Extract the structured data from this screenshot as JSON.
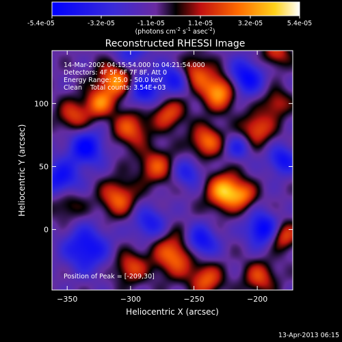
{
  "colorbar": {
    "ticks": [
      "-5.4e-05",
      "-3.2e-05",
      "-1.1e-05",
      "1.1e-05",
      "3.2e-05",
      "5.4e-05"
    ],
    "range": [
      -5.4e-05,
      5.4e-05
    ],
    "units_prefix": "(photons cm",
    "units_exp1": "-2",
    "units_mid": " s",
    "units_exp2": "-1",
    "units_mid2": " asec",
    "units_exp3": "-2",
    "units_suffix": ")"
  },
  "plot": {
    "title": "Reconstructed RHESSI Image",
    "annotations": [
      "14-Mar-2002 04:15:54.000 to 04:21:54.000",
      "Detectors: 4F 5F 6F 7F 8F, Att 0",
      "Energy Range: 25.0 - 50.0 keV",
      "Clean    Total counts: 3.54E+03"
    ],
    "peak_label": "Position of Peak = [-209,30]"
  },
  "chart_data": {
    "type": "heatmap",
    "title": "Reconstructed RHESSI Image",
    "xlabel": "Heliocentric X (arcsec)",
    "ylabel": "Heliocentric Y (arcsec)",
    "xlim": [
      -362,
      -172
    ],
    "ylim": [
      -48,
      142
    ],
    "xticks": [
      -350,
      -300,
      -250,
      -200
    ],
    "yticks": [
      0,
      50,
      100
    ],
    "value_range": [
      -5.4e-05,
      5.4e-05
    ],
    "colormap": "rhessi-blue-purple-red-yellow-white",
    "peak": [
      -209,
      30
    ],
    "blobs": [
      {
        "x": -225,
        "y": 30,
        "sigma": 10,
        "amp": 5.4e-05
      },
      {
        "x": -210,
        "y": 27,
        "sigma": 7,
        "amp": 2.5e-05
      },
      {
        "x": -230,
        "y": 110,
        "sigma": 10,
        "amp": 5e-05
      },
      {
        "x": -250,
        "y": 125,
        "sigma": 9,
        "amp": 3.5e-05
      },
      {
        "x": -240,
        "y": 70,
        "sigma": 9,
        "amp": 3.8e-05
      },
      {
        "x": -270,
        "y": 92,
        "sigma": 9,
        "amp": 3.2e-05
      },
      {
        "x": -312,
        "y": 118,
        "sigma": 10,
        "amp": 4.5e-05
      },
      {
        "x": -325,
        "y": 100,
        "sigma": 8,
        "amp": 3.6e-05
      },
      {
        "x": -300,
        "y": 80,
        "sigma": 10,
        "amp": 3.4e-05
      },
      {
        "x": -345,
        "y": 90,
        "sigma": 9,
        "amp": 3e-05
      },
      {
        "x": -280,
        "y": 50,
        "sigma": 10,
        "amp": 3.2e-05
      },
      {
        "x": -310,
        "y": 25,
        "sigma": 10,
        "amp": 3.6e-05
      },
      {
        "x": -265,
        "y": -20,
        "sigma": 12,
        "amp": 4e-05
      },
      {
        "x": -300,
        "y": -30,
        "sigma": 9,
        "amp": 3e-05
      },
      {
        "x": -200,
        "y": 80,
        "sigma": 9,
        "amp": 3.4e-05
      },
      {
        "x": -185,
        "y": 100,
        "sigma": 8,
        "amp": 2.6e-05
      },
      {
        "x": -180,
        "y": -5,
        "sigma": 8,
        "amp": 3.6e-05
      },
      {
        "x": -198,
        "y": -38,
        "sigma": 9,
        "amp": 3e-05
      },
      {
        "x": -240,
        "y": -40,
        "sigma": 9,
        "amp": 3.4e-05
      },
      {
        "x": -350,
        "y": 20,
        "sigma": 9,
        "amp": 2e-05
      },
      {
        "x": -335,
        "y": 65,
        "sigma": 10,
        "amp": -4e-05
      },
      {
        "x": -355,
        "y": 40,
        "sigma": 10,
        "amp": -3.6e-05
      },
      {
        "x": -335,
        "y": -15,
        "sigma": 12,
        "amp": -3.8e-05
      },
      {
        "x": -290,
        "y": 110,
        "sigma": 9,
        "amp": -3.6e-05
      },
      {
        "x": -265,
        "y": 120,
        "sigma": 9,
        "amp": -3.4e-05
      },
      {
        "x": -210,
        "y": 120,
        "sigma": 10,
        "amp": -4.2e-05
      },
      {
        "x": -180,
        "y": 55,
        "sigma": 8,
        "amp": -3.4e-05
      },
      {
        "x": -195,
        "y": 0,
        "sigma": 9,
        "amp": -4.6e-05
      },
      {
        "x": -245,
        "y": -10,
        "sigma": 9,
        "amp": -4e-05
      },
      {
        "x": -255,
        "y": 45,
        "sigma": 8,
        "amp": -2.6e-05
      },
      {
        "x": -285,
        "y": 5,
        "sigma": 9,
        "amp": -3e-05
      },
      {
        "x": -215,
        "y": 65,
        "sigma": 7,
        "amp": -2.4e-05
      },
      {
        "x": -300,
        "y": 140,
        "sigma": 9,
        "amp": -2.4e-05
      },
      {
        "x": -185,
        "y": 140,
        "sigma": 8,
        "amp": 2.8e-05
      }
    ]
  },
  "footer": {
    "timestamp": "13-Apr-2013 06:15"
  }
}
